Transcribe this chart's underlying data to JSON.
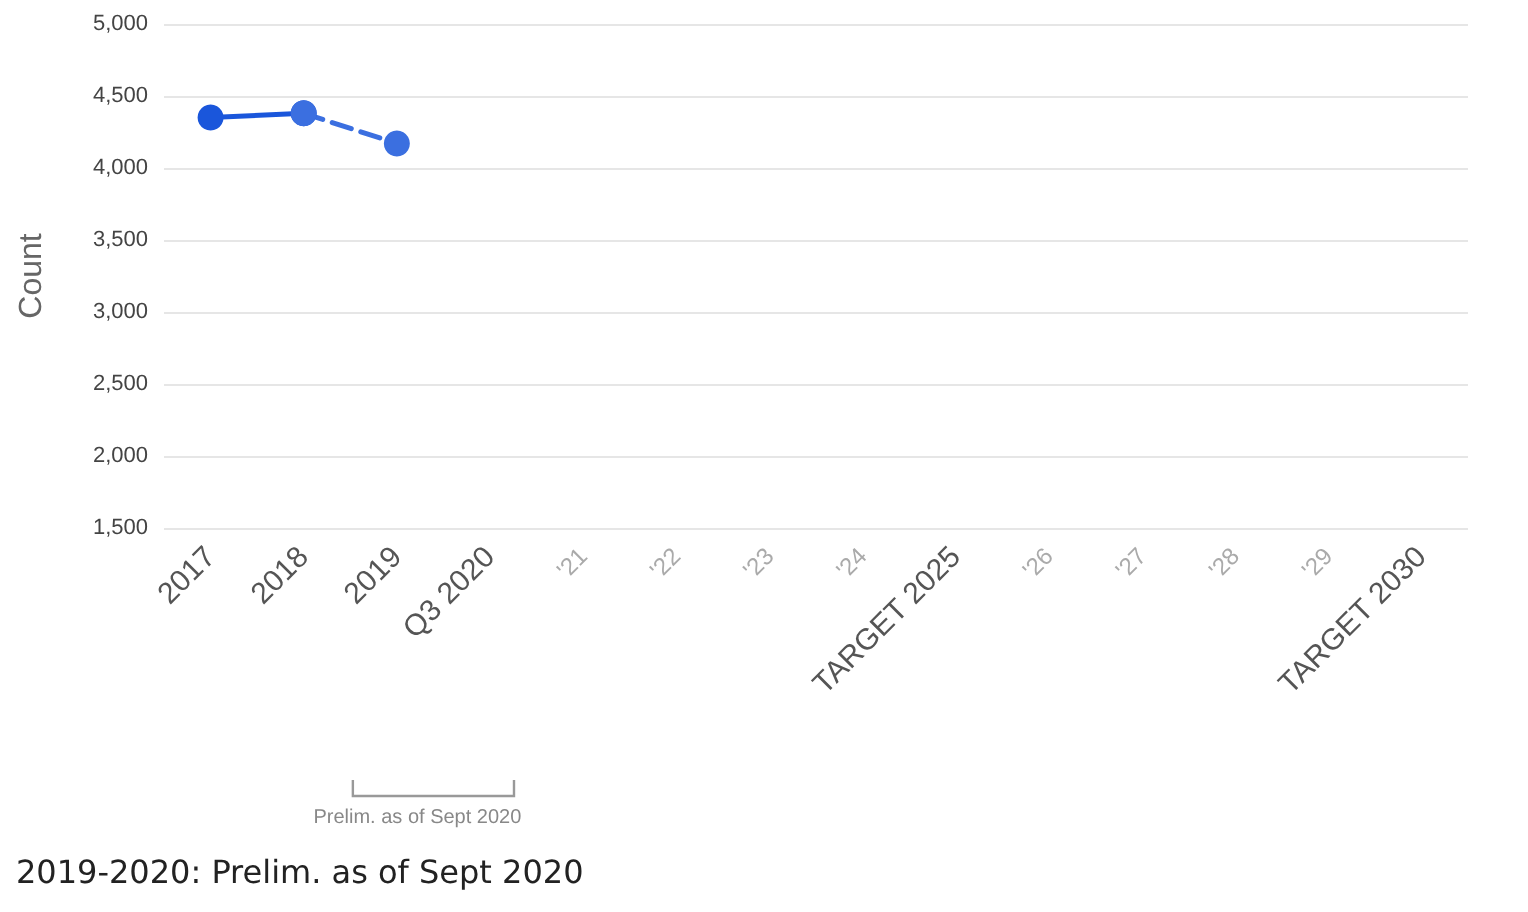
{
  "chart_data": {
    "type": "line",
    "ylabel": "Count",
    "categories": [
      "2017",
      "2018",
      "2019",
      "Q3 2020",
      "'21",
      "'22",
      "'23",
      "'24",
      "TARGET 2025",
      "'26",
      "'27",
      "'28",
      "'29",
      "TARGET 2030"
    ],
    "series": [
      {
        "color": "#1a56db",
        "line_style": "solid",
        "values": [
          4350,
          4380,
          null,
          null,
          null,
          null,
          null,
          null,
          null,
          null,
          null,
          null,
          null,
          null
        ]
      },
      {
        "color": "#3b6fe0",
        "line_style": "dashed",
        "values": [
          null,
          4380,
          4170,
          null,
          null,
          null,
          null,
          null,
          null,
          null,
          null,
          null,
          null,
          null
        ]
      }
    ],
    "ylim": [
      1500,
      5000
    ],
    "yticks": [
      {
        "value": 1500,
        "label": "1,500"
      },
      {
        "value": 2000,
        "label": "2,000"
      },
      {
        "value": 2500,
        "label": "2,500"
      },
      {
        "value": 3000,
        "label": "3,000"
      },
      {
        "value": 3500,
        "label": "3,500"
      },
      {
        "value": 4000,
        "label": "4,000"
      },
      {
        "value": 4500,
        "label": "4,500"
      },
      {
        "value": 5000,
        "label": "5,000"
      }
    ],
    "grid": "y",
    "marker": "circle",
    "annotations": [
      "Prelim. as of Sept 2020",
      "2019-2020: Prelim. as of Sept 2020"
    ]
  }
}
